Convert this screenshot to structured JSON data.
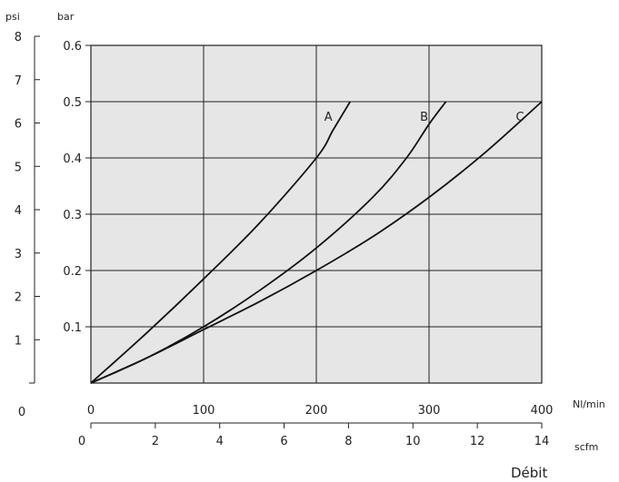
{
  "chart_data": {
    "type": "line",
    "xlabel": "Nl/min",
    "x2label": "scfm",
    "ylabel": "bar",
    "y2label": "psi",
    "footer_label": "Débit",
    "xlim": [
      0,
      400
    ],
    "ylim": [
      0,
      0.6
    ],
    "x2lim": [
      0,
      14
    ],
    "y2lim": [
      0,
      8
    ],
    "grid": true,
    "plot_background": "#e6e6e6",
    "line_color": "#111111",
    "x_ticks": [
      "0",
      "100",
      "200",
      "300",
      "400"
    ],
    "y_ticks": [
      "0.1",
      "0.2",
      "0.3",
      "0.4",
      "0.5",
      "0.6"
    ],
    "x2_ticks": [
      "0",
      "2",
      "4",
      "6",
      "8",
      "10",
      "12",
      "14"
    ],
    "y2_ticks": [
      "0",
      "1",
      "2",
      "3",
      "4",
      "5",
      "6",
      "7",
      "8"
    ],
    "series": [
      {
        "name": "A",
        "x": [
          0,
          50,
          100,
          150,
          200,
          215,
          230
        ],
        "y": [
          0,
          0.09,
          0.185,
          0.285,
          0.4,
          0.45,
          0.5
        ]
      },
      {
        "name": "B",
        "x": [
          0,
          50,
          100,
          150,
          200,
          250,
          280,
          300,
          315
        ],
        "y": [
          0,
          0.045,
          0.1,
          0.165,
          0.24,
          0.33,
          0.4,
          0.46,
          0.5
        ]
      },
      {
        "name": "C",
        "x": [
          0,
          50,
          100,
          150,
          200,
          250,
          300,
          350,
          400
        ],
        "y": [
          0,
          0.045,
          0.095,
          0.145,
          0.2,
          0.26,
          0.33,
          0.41,
          0.5
        ]
      }
    ]
  }
}
